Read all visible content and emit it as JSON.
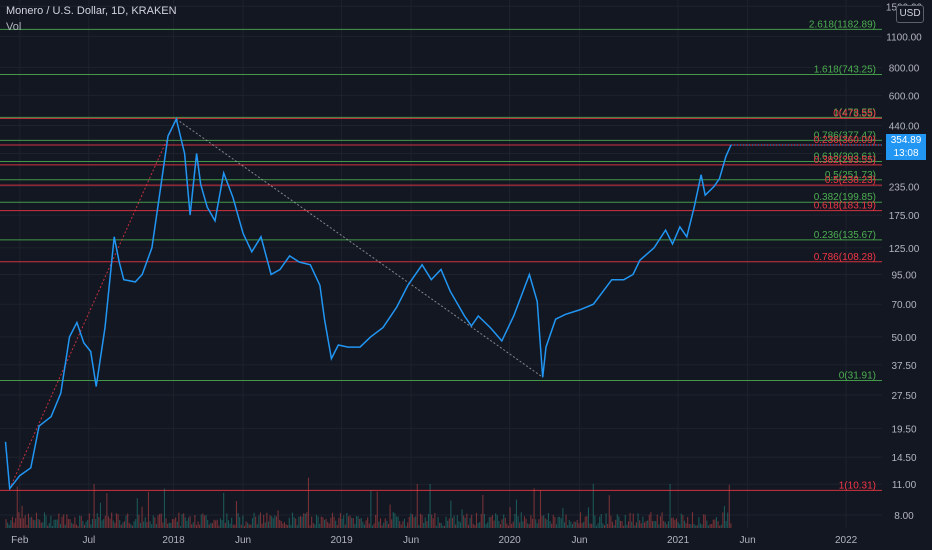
{
  "header": {
    "title": "Monero / U.S. Dollar, 1D, KRAKEN",
    "volume_label": "Vol",
    "currency": "USD"
  },
  "price_tag": {
    "price": "354.89",
    "countdown": "13:08"
  },
  "colors": {
    "background": "#131722",
    "price_line": "#2196f3",
    "fib_green": "#4caf50",
    "fib_red": "#f23645",
    "volume_up": "#26a69a",
    "volume_down": "#ef5350"
  },
  "chart_data": {
    "type": "line",
    "scale": "log",
    "ylim": [
      7,
      1600
    ],
    "y_ticks": [
      "8.00",
      "11.00",
      "14.50",
      "19.50",
      "27.50",
      "37.50",
      "50.00",
      "70.00",
      "95.00",
      "125.00",
      "175.00",
      "235.00",
      "330.00",
      "440.00",
      "600.00",
      "800.00",
      "1100.00",
      "1500.00"
    ],
    "x_ticks": [
      "Feb",
      "Jul",
      "2018",
      "Jun",
      "2019",
      "Jun",
      "2020",
      "Jun",
      "2021",
      "Jun",
      "2022"
    ],
    "series": [
      {
        "values": [
          {
            "x": "2017-01-01",
            "y": 17
          },
          {
            "x": "2017-01-10",
            "y": 10.5
          },
          {
            "x": "2017-02-01",
            "y": 12
          },
          {
            "x": "2017-02-25",
            "y": 13
          },
          {
            "x": "2017-03-15",
            "y": 20
          },
          {
            "x": "2017-04-10",
            "y": 22
          },
          {
            "x": "2017-05-01",
            "y": 28
          },
          {
            "x": "2017-05-20",
            "y": 50
          },
          {
            "x": "2017-06-05",
            "y": 58
          },
          {
            "x": "2017-06-20",
            "y": 47
          },
          {
            "x": "2017-07-05",
            "y": 43
          },
          {
            "x": "2017-07-17",
            "y": 30
          },
          {
            "x": "2017-08-05",
            "y": 55
          },
          {
            "x": "2017-08-25",
            "y": 140
          },
          {
            "x": "2017-09-05",
            "y": 108
          },
          {
            "x": "2017-09-15",
            "y": 90
          },
          {
            "x": "2017-10-10",
            "y": 88
          },
          {
            "x": "2017-10-25",
            "y": 95
          },
          {
            "x": "2017-11-15",
            "y": 125
          },
          {
            "x": "2017-12-05",
            "y": 240
          },
          {
            "x": "2017-12-20",
            "y": 395
          },
          {
            "x": "2018-01-07",
            "y": 470
          },
          {
            "x": "2018-01-25",
            "y": 330
          },
          {
            "x": "2018-02-06",
            "y": 175
          },
          {
            "x": "2018-02-20",
            "y": 330
          },
          {
            "x": "2018-03-01",
            "y": 240
          },
          {
            "x": "2018-03-15",
            "y": 190
          },
          {
            "x": "2018-04-01",
            "y": 165
          },
          {
            "x": "2018-04-20",
            "y": 270
          },
          {
            "x": "2018-05-10",
            "y": 210
          },
          {
            "x": "2018-06-01",
            "y": 145
          },
          {
            "x": "2018-06-20",
            "y": 120
          },
          {
            "x": "2018-07-10",
            "y": 140
          },
          {
            "x": "2018-08-01",
            "y": 95
          },
          {
            "x": "2018-08-20",
            "y": 100
          },
          {
            "x": "2018-09-10",
            "y": 115
          },
          {
            "x": "2018-10-01",
            "y": 108
          },
          {
            "x": "2018-10-25",
            "y": 105
          },
          {
            "x": "2018-11-15",
            "y": 85
          },
          {
            "x": "2018-11-25",
            "y": 60
          },
          {
            "x": "2018-12-10",
            "y": 40
          },
          {
            "x": "2018-12-25",
            "y": 46
          },
          {
            "x": "2019-01-15",
            "y": 45
          },
          {
            "x": "2019-02-10",
            "y": 45
          },
          {
            "x": "2019-03-05",
            "y": 50
          },
          {
            "x": "2019-04-01",
            "y": 55
          },
          {
            "x": "2019-05-01",
            "y": 68
          },
          {
            "x": "2019-05-25",
            "y": 85
          },
          {
            "x": "2019-06-25",
            "y": 105
          },
          {
            "x": "2019-07-15",
            "y": 90
          },
          {
            "x": "2019-08-05",
            "y": 100
          },
          {
            "x": "2019-08-25",
            "y": 80
          },
          {
            "x": "2019-09-25",
            "y": 62
          },
          {
            "x": "2019-10-10",
            "y": 56
          },
          {
            "x": "2019-10-25",
            "y": 62
          },
          {
            "x": "2019-11-20",
            "y": 55
          },
          {
            "x": "2019-12-15",
            "y": 48
          },
          {
            "x": "2020-01-10",
            "y": 62
          },
          {
            "x": "2020-02-13",
            "y": 95
          },
          {
            "x": "2020-03-01",
            "y": 72
          },
          {
            "x": "2020-03-13",
            "y": 33
          },
          {
            "x": "2020-03-20",
            "y": 45
          },
          {
            "x": "2020-04-10",
            "y": 60
          },
          {
            "x": "2020-05-01",
            "y": 63
          },
          {
            "x": "2020-06-01",
            "y": 66
          },
          {
            "x": "2020-07-01",
            "y": 70
          },
          {
            "x": "2020-08-10",
            "y": 90
          },
          {
            "x": "2020-09-05",
            "y": 90
          },
          {
            "x": "2020-09-25",
            "y": 95
          },
          {
            "x": "2020-10-10",
            "y": 110
          },
          {
            "x": "2020-11-10",
            "y": 125
          },
          {
            "x": "2020-12-05",
            "y": 150
          },
          {
            "x": "2020-12-20",
            "y": 130
          },
          {
            "x": "2021-01-05",
            "y": 155
          },
          {
            "x": "2021-01-20",
            "y": 140
          },
          {
            "x": "2021-02-05",
            "y": 190
          },
          {
            "x": "2021-02-20",
            "y": 265
          },
          {
            "x": "2021-03-01",
            "y": 215
          },
          {
            "x": "2021-03-20",
            "y": 235
          },
          {
            "x": "2021-04-01",
            "y": 255
          },
          {
            "x": "2021-04-15",
            "y": 320
          },
          {
            "x": "2021-04-26",
            "y": 360
          }
        ]
      }
    ],
    "fib_levels": [
      {
        "label": "2.618(1182.89)",
        "value": 1182.89,
        "color": "#4caf50"
      },
      {
        "label": "1.618(743.25)",
        "value": 743.25,
        "color": "#4caf50"
      },
      {
        "label": "1(478.55)",
        "value": 478.55,
        "color": "#4caf50"
      },
      {
        "label": "0(473.55)",
        "value": 473.55,
        "color": "#f23645"
      },
      {
        "label": "0.786(377.47)",
        "value": 377.47,
        "color": "#4caf50"
      },
      {
        "label": "0.236(360.09)",
        "value": 360.09,
        "color": "#f23645"
      },
      {
        "label": "0.618(303.61)",
        "value": 303.61,
        "color": "#4caf50"
      },
      {
        "label": "0.382(293.55)",
        "value": 293.55,
        "color": "#f23645"
      },
      {
        "label": "0.5(251.73)",
        "value": 251.73,
        "color": "#4caf50"
      },
      {
        "label": "0.5(238.23)",
        "value": 238.23,
        "color": "#f23645"
      },
      {
        "label": "0.382(199.85)",
        "value": 199.85,
        "color": "#4caf50"
      },
      {
        "label": "0.618(183.19)",
        "value": 183.19,
        "color": "#f23645"
      },
      {
        "label": "0.236(135.67)",
        "value": 135.67,
        "color": "#4caf50"
      },
      {
        "label": "0.786(108.28)",
        "value": 108.28,
        "color": "#f23645"
      },
      {
        "label": "0(31.91)",
        "value": 31.91,
        "color": "#4caf50"
      },
      {
        "label": "1(10.31)",
        "value": 10.31,
        "color": "#f23645"
      }
    ]
  }
}
